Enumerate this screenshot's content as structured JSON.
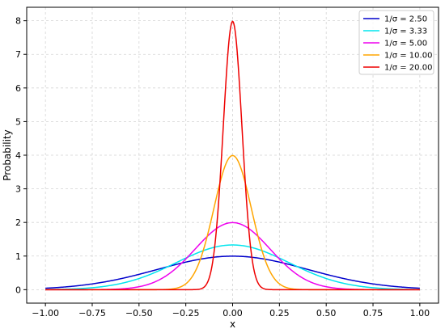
{
  "chart_data": {
    "type": "line",
    "title": "",
    "xlabel": "x",
    "ylabel": "Probability",
    "xlim": [
      -1.1,
      1.1
    ],
    "ylim": [
      -0.4,
      8.4
    ],
    "xticks": [
      -1.0,
      -0.75,
      -0.5,
      -0.25,
      0.0,
      0.25,
      0.5,
      0.75,
      1.0
    ],
    "xtick_labels": [
      "−1.00",
      "−0.75",
      "−0.50",
      "−0.25",
      "0.00",
      "0.25",
      "0.50",
      "0.75",
      "1.00"
    ],
    "yticks": [
      0,
      1,
      2,
      3,
      4,
      5,
      6,
      7,
      8
    ],
    "ytick_labels": [
      "0",
      "1",
      "2",
      "3",
      "4",
      "5",
      "6",
      "7",
      "8"
    ],
    "x_range": [
      -1.0,
      1.0
    ],
    "grid": true,
    "legend_position": "top-right",
    "series": [
      {
        "name": "1/σ = 2.50",
        "inv_sigma": 2.5,
        "peak": 0.997,
        "color": "#0000cc"
      },
      {
        "name": "1/σ = 3.33",
        "inv_sigma": 3.33,
        "peak": 1.33,
        "color": "#00e5ee"
      },
      {
        "name": "1/σ = 5.00",
        "inv_sigma": 5.0,
        "peak": 1.995,
        "color": "#ee00ee"
      },
      {
        "name": "1/σ = 10.00",
        "inv_sigma": 10.0,
        "peak": 3.99,
        "color": "#ffa500"
      },
      {
        "name": "1/σ = 20.00",
        "inv_sigma": 20.0,
        "peak": 7.98,
        "color": "#ee0000"
      }
    ]
  }
}
